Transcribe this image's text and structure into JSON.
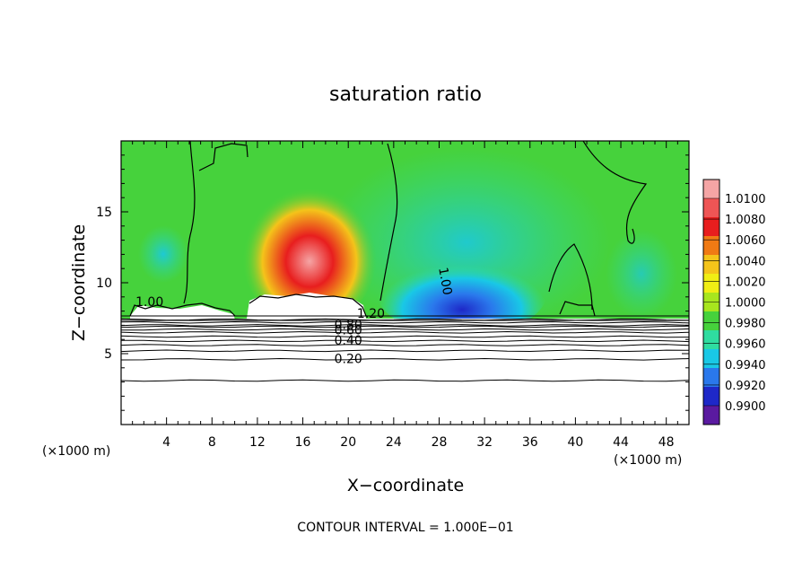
{
  "chart_data": {
    "type": "heatmap",
    "title": "saturation ratio",
    "xlabel": "X−coordinate",
    "ylabel": "Z−coordinate",
    "x_unit_label_left": "(×1000 m)",
    "x_unit_label_right": "(×1000 m)",
    "footer": "CONTOUR INTERVAL = 1.000E−01",
    "xlim": [
      0,
      50
    ],
    "ylim": [
      0,
      20
    ],
    "x_ticks": [
      "4",
      "8",
      "12",
      "16",
      "20",
      "24",
      "28",
      "32",
      "36",
      "40",
      "44",
      "48"
    ],
    "y_ticks": [
      "5",
      "10",
      "15"
    ],
    "colorbar": {
      "labels": [
        "1.0100",
        "1.0080",
        "1.0060",
        "1.0040",
        "1.0020",
        "1.0000",
        "0.9980",
        "0.9960",
        "0.9940",
        "0.9920",
        "0.9900"
      ],
      "colors": [
        "#f5a5a5",
        "#ee5555",
        "#e81e1e",
        "#f07a14",
        "#f4c41a",
        "#f0ee14",
        "#a8e61e",
        "#46d23c",
        "#2fdca0",
        "#19c8e6",
        "#2a78ec",
        "#1e28c8",
        "#5a1aa0"
      ]
    },
    "contour_labels": [
      {
        "text": "1.20",
        "x": 22.0,
        "y": 7.8
      },
      {
        "text": "0.80",
        "x": 20.0,
        "y": 7.0
      },
      {
        "text": "0.60",
        "x": 20.0,
        "y": 6.6
      },
      {
        "text": "0.40",
        "x": 20.0,
        "y": 5.9
      },
      {
        "text": "0.20",
        "x": 20.0,
        "y": 4.6
      },
      {
        "text": "1.00",
        "x": 2.5,
        "y": 8.6
      },
      {
        "text": "1.00",
        "x": 28.5,
        "y": 10.1
      }
    ],
    "stratified_contours_y": [
      3.1,
      4.6,
      5.2,
      5.6,
      5.9,
      6.2,
      6.5,
      6.7,
      6.9,
      7.0,
      7.2,
      7.4
    ],
    "cloud_base_y": 7.6,
    "features": [
      {
        "name": "supersaturated plume",
        "x": 16.5,
        "z": 11.5,
        "value": 1.0085
      },
      {
        "name": "subsaturated core",
        "x": 30,
        "z": 9.2,
        "value": 0.991
      }
    ]
  }
}
